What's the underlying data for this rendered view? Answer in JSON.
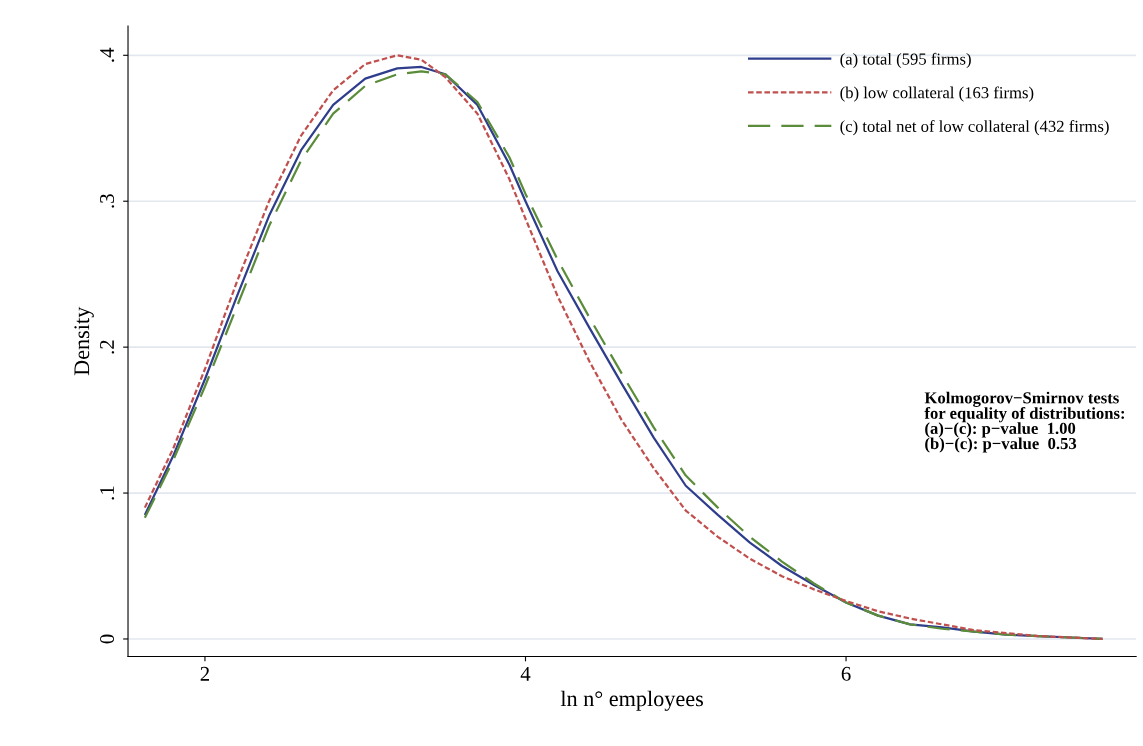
{
  "chart_data": {
    "type": "line",
    "xlabel": "ln n° employees",
    "ylabel": "Density",
    "xlim": [
      1.52,
      7.81
    ],
    "xticks": [
      2,
      4,
      6
    ],
    "ylim": [
      -0.012,
      0.42
    ],
    "yticks": [
      {
        "value": 0,
        "label": "0"
      },
      {
        "value": 0.1,
        "label": ".1"
      },
      {
        "value": 0.2,
        "label": ".2"
      },
      {
        "value": 0.3,
        "label": ".3"
      },
      {
        "value": 0.4,
        "label": ".4"
      }
    ],
    "grid": "y",
    "legend": "top right",
    "x": [
      1.625,
      1.8,
      2.0,
      2.2,
      2.4,
      2.6,
      2.8,
      3.0,
      3.2,
      3.35,
      3.5,
      3.7,
      3.9,
      4.0,
      4.2,
      4.4,
      4.6,
      4.8,
      5.0,
      5.2,
      5.4,
      5.6,
      5.8,
      6.0,
      6.2,
      6.4,
      6.6,
      6.8,
      7.0,
      7.2,
      7.4,
      7.6
    ],
    "series": [
      {
        "name": "(a) total (595 firms)",
        "color": "#2e3d8c",
        "line_style": "solid",
        "values": [
          0.085,
          0.125,
          0.178,
          0.235,
          0.29,
          0.335,
          0.366,
          0.384,
          0.391,
          0.392,
          0.387,
          0.366,
          0.325,
          0.3,
          0.252,
          0.213,
          0.175,
          0.138,
          0.105,
          0.085,
          0.066,
          0.05,
          0.037,
          0.025,
          0.016,
          0.01,
          0.008,
          0.005,
          0.003,
          0.002,
          0.001,
          0
        ]
      },
      {
        "name": "(b) low collateral (163 firms)",
        "color": "#c0504d",
        "line_style": "dotted",
        "values": [
          0.09,
          0.13,
          0.185,
          0.245,
          0.3,
          0.345,
          0.376,
          0.394,
          0.4,
          0.397,
          0.385,
          0.36,
          0.315,
          0.288,
          0.235,
          0.19,
          0.15,
          0.117,
          0.088,
          0.07,
          0.055,
          0.043,
          0.034,
          0.026,
          0.019,
          0.014,
          0.01,
          0.006,
          0.004,
          0.002,
          0.001,
          0
        ]
      },
      {
        "name": "(c) total net of low collateral (432 firms)",
        "color": "#5b8c3a",
        "line_style": "dashed",
        "values": [
          0.083,
          0.122,
          0.173,
          0.228,
          0.283,
          0.328,
          0.36,
          0.379,
          0.387,
          0.389,
          0.387,
          0.368,
          0.33,
          0.305,
          0.26,
          0.22,
          0.182,
          0.145,
          0.112,
          0.09,
          0.07,
          0.053,
          0.038,
          0.025,
          0.016,
          0.01,
          0.007,
          0.005,
          0.003,
          0.002,
          0.001,
          0
        ]
      }
    ],
    "annotations": [
      "Kolmogorov−Smirnov tests\nfor equality of distributions:\n(a)−(c): p−value  1.00\n(b)−(c): p−value  0.53"
    ]
  }
}
